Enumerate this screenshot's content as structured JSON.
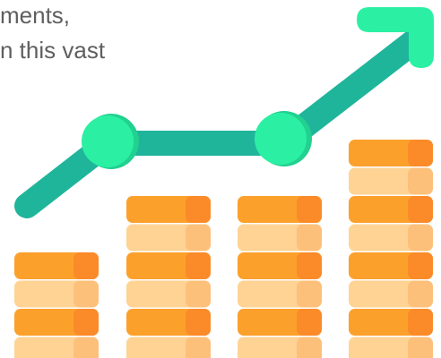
{
  "caption": {
    "line1": "ments,",
    "line2": "n this vast"
  },
  "illustration": {
    "icon": "growth-chart-coins-icon",
    "coin_stacks": [
      {
        "coins": 4
      },
      {
        "coins": 6
      },
      {
        "coins": 6
      },
      {
        "coins": 8
      }
    ]
  },
  "colors": {
    "caption_text": "#5f5f5f",
    "coin_dark": "#fca02c",
    "coin_dark_edge": "#fb8a29",
    "coin_light": "#fed394",
    "coin_light_edge": "#fdc07a",
    "arrow_line": "#1fb59b",
    "arrow_head": "#2bf0a3",
    "node": "#2bf0a3",
    "node_shade": "#22d18f"
  }
}
